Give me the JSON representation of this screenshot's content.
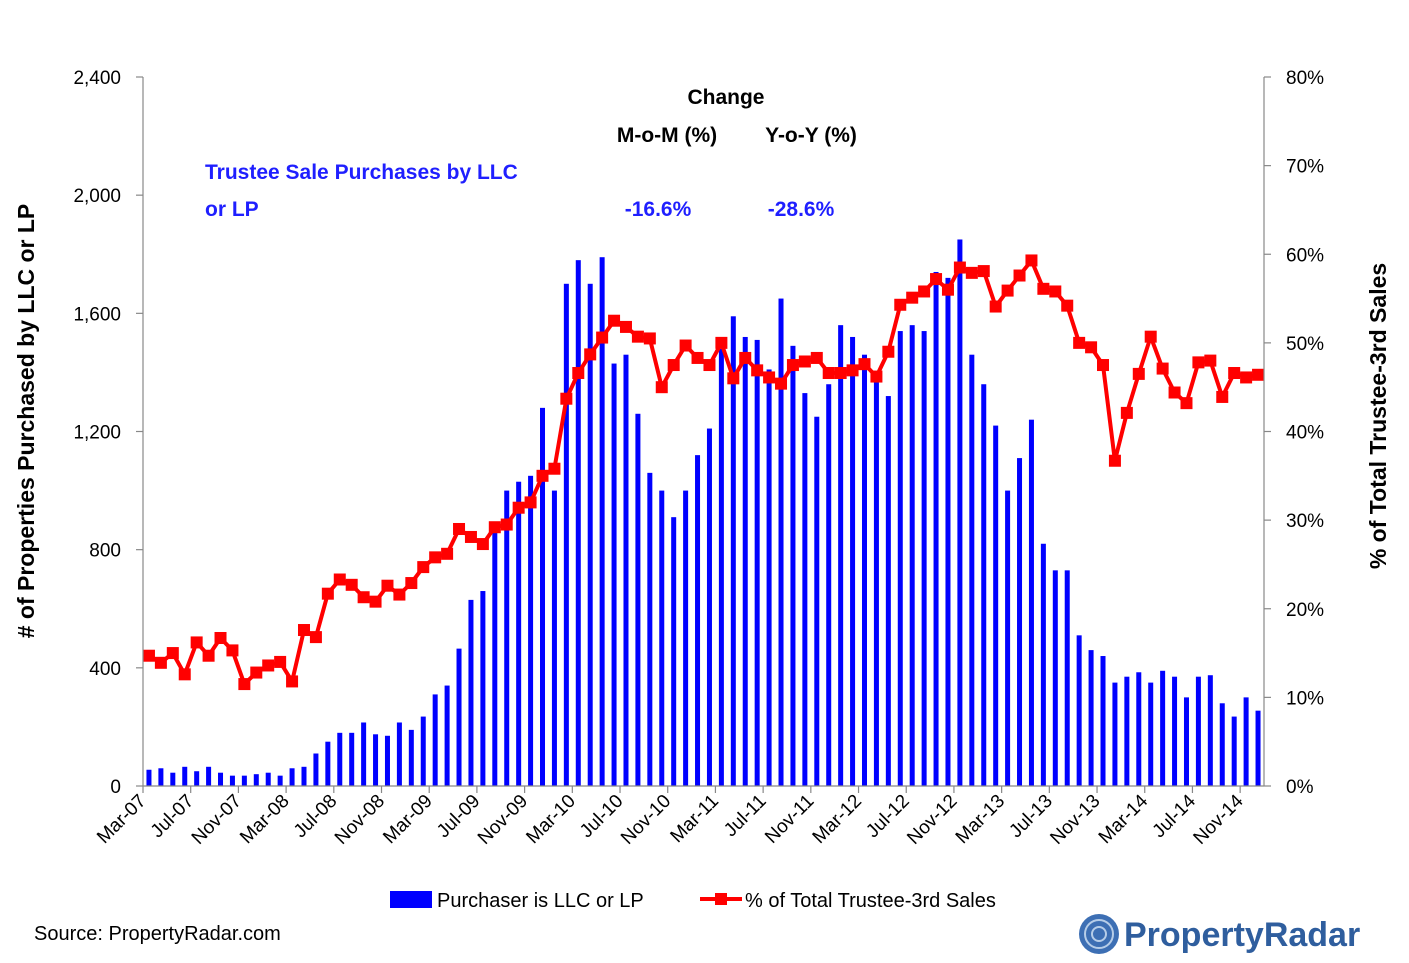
{
  "chart_data": {
    "type": "bar",
    "title": "",
    "ylabel": "# of Properties Purchased by LLC or LP",
    "ylabel_right": "% of Total Trustee-3rd Sales",
    "ylim": [
      0,
      2400
    ],
    "ylim_right": [
      0,
      80
    ],
    "yticks": [
      "0",
      "400",
      "800",
      "1,200",
      "1,600",
      "2,000",
      "2,400"
    ],
    "yticks_right": [
      "0%",
      "10%",
      "20%",
      "30%",
      "40%",
      "50%",
      "60%",
      "70%",
      "80%"
    ],
    "x_tick_labels": [
      "Mar-07",
      "Jul-07",
      "Nov-07",
      "Mar-08",
      "Jul-08",
      "Nov-08",
      "Mar-09",
      "Jul-09",
      "Nov-09",
      "Mar-10",
      "Jul-10",
      "Nov-10",
      "Mar-11",
      "Jul-11",
      "Nov-11",
      "Mar-12",
      "Jul-12",
      "Nov-12",
      "Mar-13",
      "Jul-13",
      "Nov-13",
      "Mar-14",
      "Jul-14",
      "Nov-14"
    ],
    "grid": false,
    "legend_position": "bottom",
    "series": [
      {
        "name": "Purchaser is LLC or LP",
        "type": "bar",
        "axis": "left",
        "color": "#0000ff",
        "values": [
          55,
          60,
          45,
          65,
          50,
          65,
          45,
          35,
          35,
          40,
          45,
          35,
          60,
          65,
          110,
          150,
          180,
          180,
          215,
          175,
          170,
          215,
          190,
          235,
          310,
          340,
          465,
          630,
          660,
          860,
          1000,
          1030,
          1050,
          1280,
          1000,
          1700,
          1780,
          1700,
          1790,
          1430,
          1460,
          1260,
          1060,
          1000,
          910,
          1000,
          1120,
          1210,
          1480,
          1590,
          1520,
          1510,
          1410,
          1650,
          1490,
          1330,
          1250,
          1360,
          1560,
          1520,
          1460,
          1370,
          1320,
          1540,
          1560,
          1540,
          1740,
          1720,
          1850,
          1460,
          1360,
          1220,
          1000,
          1110,
          1240,
          820,
          730,
          730,
          510,
          460,
          440,
          350,
          370,
          385,
          350,
          390,
          370,
          300,
          370,
          375,
          280,
          235,
          300,
          255
        ]
      },
      {
        "name": "% of Total Trustee-3rd Sales",
        "type": "line",
        "axis": "right",
        "color": "#ff0000",
        "values": [
          14.7,
          13.9,
          15.0,
          12.6,
          16.2,
          14.7,
          16.7,
          15.3,
          11.5,
          12.8,
          13.6,
          14.0,
          11.8,
          17.6,
          16.8,
          21.7,
          23.3,
          22.7,
          21.3,
          20.8,
          22.6,
          21.6,
          22.9,
          24.7,
          25.8,
          26.2,
          29.0,
          28.1,
          27.3,
          29.2,
          29.5,
          31.4,
          32.0,
          35.0,
          35.8,
          43.7,
          46.6,
          48.7,
          50.6,
          52.5,
          51.8,
          50.7,
          50.5,
          45.0,
          47.5,
          49.7,
          48.3,
          47.5,
          50.0,
          46.0,
          48.3,
          46.9,
          46.1,
          45.4,
          47.5,
          47.9,
          48.3,
          46.6,
          46.6,
          46.9,
          47.6,
          46.2,
          49.0,
          54.3,
          55.1,
          55.8,
          57.2,
          56.0,
          58.5,
          57.9,
          58.1,
          54.1,
          55.9,
          57.6,
          59.3,
          56.1,
          55.8,
          54.2,
          50.0,
          49.5,
          47.5,
          36.7,
          42.1,
          46.5,
          50.7,
          47.1,
          44.4,
          43.2,
          47.8,
          48.0,
          43.9,
          46.6,
          46.1,
          46.4
        ]
      }
    ],
    "annotations": {
      "change_header": "Change",
      "mom_header": "M-o-M (%)",
      "yoy_header": "Y-o-Y (%)",
      "series_label_line1": "Trustee Sale Purchases by LLC",
      "series_label_line2": "or LP",
      "mom_value": "-16.6%",
      "yoy_value": "-28.6%"
    },
    "source": "Source: PropertyRadar.com",
    "logo": "PropertyRadar"
  }
}
